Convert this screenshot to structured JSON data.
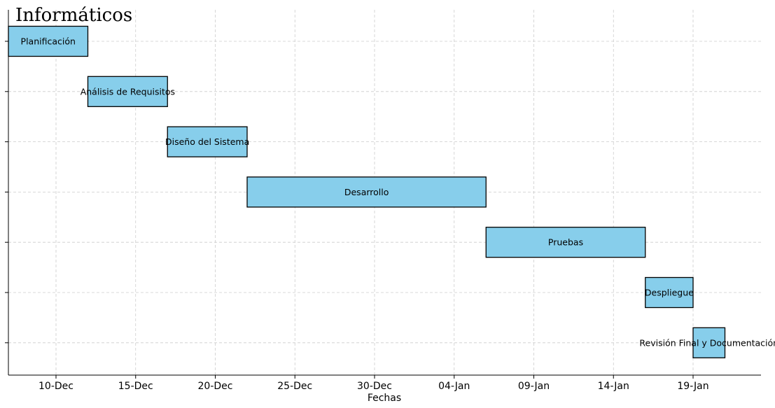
{
  "chart_data": {
    "type": "gantt",
    "title": "Informáticos",
    "xlabel": "Fechas",
    "ylabel": "",
    "grid": true,
    "bar_color": "#87CEEB",
    "bar_edge_color": "#000000",
    "grid_color": "#cccccc",
    "x_ticks": [
      "10-Dec",
      "15-Dec",
      "20-Dec",
      "25-Dec",
      "30-Dec",
      "04-Jan",
      "09-Jan",
      "14-Jan",
      "19-Jan"
    ],
    "tasks": [
      {
        "label": "Planificación",
        "start": "07-Dec",
        "end": "12-Dec"
      },
      {
        "label": "Análisis de Requisitos",
        "start": "12-Dec",
        "end": "17-Dec"
      },
      {
        "label": "Diseño del Sistema",
        "start": "17-Dec",
        "end": "22-Dec"
      },
      {
        "label": "Desarrollo",
        "start": "22-Dec",
        "end": "06-Jan"
      },
      {
        "label": "Pruebas",
        "start": "06-Jan",
        "end": "16-Jan"
      },
      {
        "label": "Despliegue",
        "start": "16-Jan",
        "end": "19-Jan"
      },
      {
        "label": "Revisión Final y Documentación",
        "start": "19-Jan",
        "end": "21-Jan"
      }
    ]
  }
}
